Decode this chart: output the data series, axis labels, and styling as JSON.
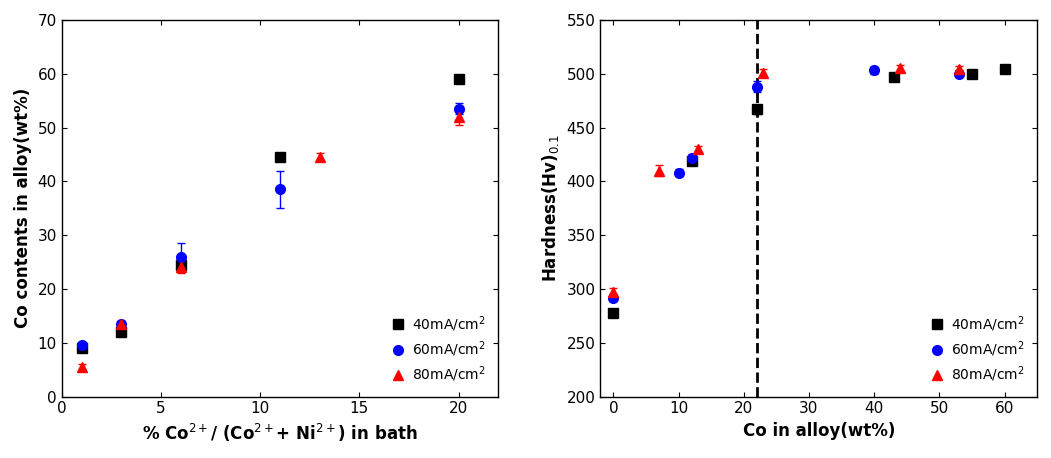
{
  "left": {
    "xlabel": "% Co$^{2+}$/ (Co$^{2+}$+ Ni$^{2+}$) in bath",
    "ylabel": "Co contents in alloy(wt%)",
    "xlim": [
      0,
      22
    ],
    "ylim": [
      0,
      70
    ],
    "xticks": [
      0,
      5,
      10,
      15,
      20
    ],
    "yticks": [
      0,
      10,
      20,
      30,
      40,
      50,
      60,
      70
    ],
    "series": {
      "40mA/cm$^2$": {
        "color": "black",
        "marker": "s",
        "x": [
          1,
          3,
          6,
          11,
          20
        ],
        "y": [
          9.0,
          12.0,
          24.5,
          44.5,
          59.0
        ],
        "yerr": [
          0.5,
          0.5,
          0.8,
          0.8,
          0.8
        ]
      },
      "60mA/cm$^2$": {
        "color": "blue",
        "marker": "o",
        "x": [
          1,
          3,
          6,
          11,
          20
        ],
        "y": [
          9.5,
          13.5,
          26.0,
          38.5,
          53.5
        ],
        "yerr": [
          0.5,
          0.5,
          2.5,
          3.5,
          1.0
        ]
      },
      "80mA/cm$^2$": {
        "color": "red",
        "marker": "^",
        "x": [
          1,
          3,
          6,
          13,
          20
        ],
        "y": [
          5.5,
          13.5,
          24.0,
          44.5,
          52.0
        ],
        "yerr": [
          0.5,
          0.5,
          1.0,
          0.8,
          1.5
        ]
      }
    }
  },
  "right": {
    "xlabel": "Co in alloy(wt%)",
    "ylabel": "Hardness(Hv)$_{0.1}$",
    "xlim": [
      -2,
      65
    ],
    "ylim": [
      200,
      550
    ],
    "xticks": [
      0,
      10,
      20,
      30,
      40,
      50,
      60
    ],
    "yticks": [
      200,
      250,
      300,
      350,
      400,
      450,
      500,
      550
    ],
    "dashed_x": 22,
    "series": {
      "40mA/cm$^2$": {
        "color": "black",
        "marker": "s",
        "x": [
          0,
          12,
          22,
          43,
          55,
          60
        ],
        "y": [
          278,
          419,
          467,
          497,
          500,
          504
        ],
        "yerr": [
          3,
          3,
          4,
          3,
          3,
          3
        ]
      },
      "60mA/cm$^2$": {
        "color": "blue",
        "marker": "o",
        "x": [
          0,
          10,
          12,
          22,
          40,
          53
        ],
        "y": [
          292,
          408,
          422,
          488,
          503,
          500
        ],
        "yerr": [
          3,
          3,
          3,
          5,
          3,
          3
        ]
      },
      "80mA/cm$^2$": {
        "color": "red",
        "marker": "^",
        "x": [
          0,
          7,
          13,
          23,
          44,
          53
        ],
        "y": [
          297,
          410,
          430,
          501,
          505,
          504
        ],
        "yerr": [
          4,
          5,
          3,
          3,
          3,
          3
        ]
      }
    }
  },
  "legend_labels": [
    "40mA/cm$^2$",
    "60mA/cm$^2$",
    "80mA/cm$^2$"
  ],
  "legend_colors": [
    "black",
    "blue",
    "red"
  ],
  "legend_markers": [
    "s",
    "o",
    "^"
  ]
}
